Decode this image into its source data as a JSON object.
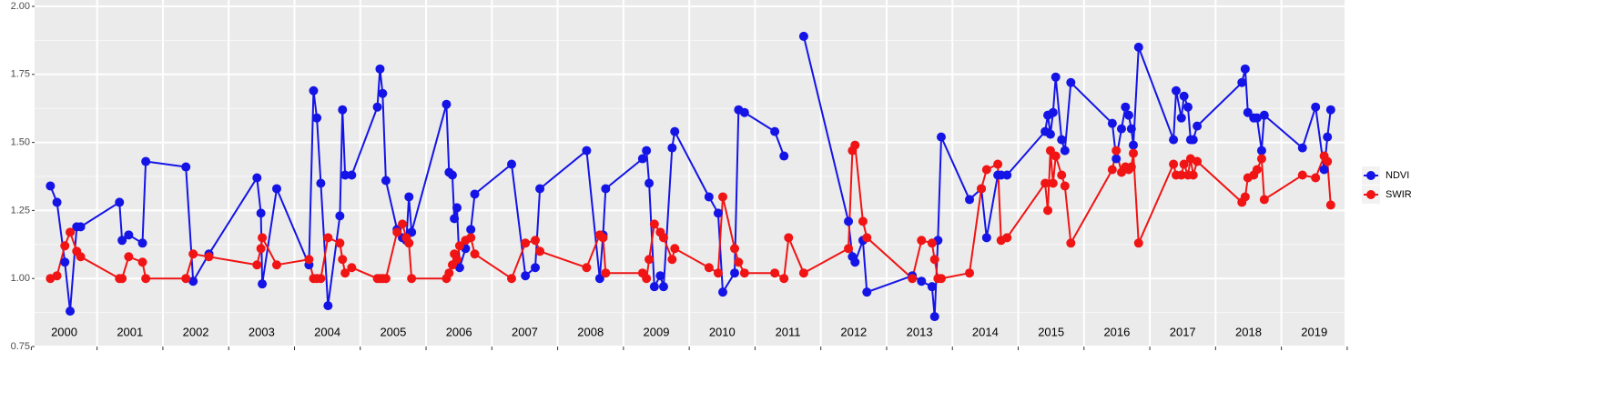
{
  "chart_data": {
    "type": "line",
    "x": [
      2000.29,
      2000.39,
      2000.51,
      2000.59,
      2000.69,
      2000.75,
      2001.34,
      2001.38,
      2001.48,
      2001.69,
      2001.74,
      2002.35,
      2002.46,
      2002.7,
      2003.43,
      2003.49,
      2003.51,
      2003.73,
      2004.22,
      2004.29,
      2004.34,
      2004.4,
      2004.51,
      2004.69,
      2004.73,
      2004.77,
      2004.87,
      2005.26,
      2005.3,
      2005.34,
      2005.39,
      2005.56,
      2005.64,
      2005.7,
      2005.74,
      2005.78,
      2006.31,
      2006.35,
      2006.4,
      2006.43,
      2006.47,
      2006.51,
      2006.6,
      2006.68,
      2006.74,
      2007.3,
      2007.51,
      2007.66,
      2007.73,
      2008.44,
      2008.64,
      2008.69,
      2008.73,
      2009.29,
      2009.35,
      2009.39,
      2009.47,
      2009.56,
      2009.61,
      2009.74,
      2009.78,
      2010.3,
      2010.44,
      2010.51,
      2010.69,
      2010.75,
      2010.84,
      2011.3,
      2011.44,
      2011.51,
      2011.74,
      2012.42,
      2012.48,
      2012.52,
      2012.64,
      2012.7,
      2013.39,
      2013.53,
      2013.69,
      2013.73,
      2013.78,
      2013.83,
      2014.26,
      2014.44,
      2014.52,
      2014.69,
      2014.74,
      2014.83,
      2015.41,
      2015.45,
      2015.49,
      2015.53,
      2015.57,
      2015.66,
      2015.71,
      2015.8,
      2016.43,
      2016.49,
      2016.57,
      2016.63,
      2016.68,
      2016.72,
      2016.75,
      2016.83,
      2017.36,
      2017.4,
      2017.48,
      2017.52,
      2017.58,
      2017.62,
      2017.66,
      2017.72,
      2018.4,
      2018.45,
      2018.49,
      2018.58,
      2018.63,
      2018.7,
      2018.74,
      2019.32,
      2019.52,
      2019.65,
      2019.7,
      2019.75
    ],
    "series": [
      {
        "name": "NDVI",
        "color": "#1414e6",
        "values": [
          1.34,
          1.28,
          1.06,
          0.88,
          1.19,
          1.19,
          1.28,
          1.14,
          1.16,
          1.13,
          1.43,
          1.41,
          0.99,
          1.09,
          1.37,
          1.24,
          0.98,
          1.33,
          1.05,
          1.69,
          1.59,
          1.35,
          0.9,
          1.23,
          1.62,
          1.38,
          1.38,
          1.63,
          1.77,
          1.68,
          1.36,
          1.18,
          1.15,
          1.14,
          1.3,
          1.17,
          1.64,
          1.39,
          1.38,
          1.22,
          1.26,
          1.04,
          1.11,
          1.18,
          1.31,
          1.42,
          1.01,
          1.04,
          1.33,
          1.47,
          1.0,
          1.16,
          1.33,
          1.44,
          1.47,
          1.35,
          0.97,
          1.01,
          0.97,
          1.48,
          1.54,
          1.3,
          1.24,
          0.95,
          1.02,
          1.62,
          1.61,
          1.54,
          1.45,
          null,
          1.89,
          1.21,
          1.08,
          1.06,
          1.14,
          0.95,
          1.01,
          0.99,
          0.97,
          0.86,
          1.14,
          1.52,
          1.29,
          1.33,
          1.15,
          1.38,
          1.38,
          1.38,
          1.54,
          1.6,
          1.53,
          1.61,
          1.74,
          1.51,
          1.47,
          1.72,
          1.57,
          1.44,
          1.55,
          1.63,
          1.6,
          1.55,
          1.49,
          1.85,
          1.51,
          1.69,
          1.59,
          1.67,
          1.63,
          1.51,
          1.51,
          1.56,
          1.72,
          1.77,
          1.61,
          1.59,
          1.59,
          1.47,
          1.6,
          1.48,
          1.63,
          1.4,
          1.52,
          1.62
        ]
      },
      {
        "name": "SWIR",
        "color": "#f01414",
        "values": [
          1.0,
          1.01,
          1.12,
          1.17,
          1.1,
          1.08,
          1.0,
          1.0,
          1.08,
          1.06,
          1.0,
          1.0,
          1.09,
          1.08,
          1.05,
          1.11,
          1.15,
          1.05,
          1.07,
          1.0,
          1.0,
          1.0,
          1.15,
          1.13,
          1.07,
          1.02,
          1.04,
          1.0,
          1.0,
          1.0,
          1.0,
          1.17,
          1.2,
          1.15,
          1.13,
          1.0,
          1.0,
          1.02,
          1.05,
          1.09,
          1.07,
          1.12,
          1.14,
          1.15,
          1.09,
          1.0,
          1.13,
          1.14,
          1.1,
          1.04,
          1.16,
          1.15,
          1.02,
          1.02,
          1.0,
          1.07,
          1.2,
          1.17,
          1.15,
          1.07,
          1.11,
          1.04,
          1.02,
          1.3,
          1.11,
          1.06,
          1.02,
          1.02,
          1.0,
          1.15,
          1.02,
          1.11,
          1.47,
          1.49,
          1.21,
          1.15,
          1.0,
          1.14,
          1.13,
          1.07,
          1.0,
          1.0,
          1.02,
          1.33,
          1.4,
          1.42,
          1.14,
          1.15,
          1.35,
          1.25,
          1.47,
          1.35,
          1.45,
          1.38,
          1.34,
          1.13,
          1.4,
          1.47,
          1.39,
          1.41,
          1.4,
          1.41,
          1.46,
          1.13,
          1.42,
          1.38,
          1.38,
          1.42,
          1.38,
          1.44,
          1.38,
          1.43,
          1.28,
          1.3,
          1.37,
          1.38,
          1.4,
          1.44,
          1.29,
          1.38,
          1.37,
          1.45,
          1.43,
          1.27
        ]
      }
    ],
    "xlim": [
      2000.05,
      2019.96
    ],
    "xticks": [
      {
        "value": 2000.5,
        "label": "2000"
      },
      {
        "value": 2001.5,
        "label": "2001"
      },
      {
        "value": 2002.5,
        "label": "2002"
      },
      {
        "value": 2003.5,
        "label": "2003"
      },
      {
        "value": 2004.5,
        "label": "2004"
      },
      {
        "value": 2005.5,
        "label": "2005"
      },
      {
        "value": 2006.5,
        "label": "2006"
      },
      {
        "value": 2007.5,
        "label": "2007"
      },
      {
        "value": 2008.5,
        "label": "2008"
      },
      {
        "value": 2009.5,
        "label": "2009"
      },
      {
        "value": 2010.5,
        "label": "2010"
      },
      {
        "value": 2011.5,
        "label": "2011"
      },
      {
        "value": 2012.5,
        "label": "2012"
      },
      {
        "value": 2013.5,
        "label": "2013"
      },
      {
        "value": 2014.5,
        "label": "2014"
      },
      {
        "value": 2015.5,
        "label": "2015"
      },
      {
        "value": 2016.5,
        "label": "2016"
      },
      {
        "value": 2017.5,
        "label": "2017"
      },
      {
        "value": 2018.5,
        "label": "2018"
      },
      {
        "value": 2019.5,
        "label": "2019"
      }
    ],
    "ylim": [
      0.75,
      2.0
    ],
    "yticks": [
      0.75,
      {
        "value": 1.0,
        "label": "1.00"
      },
      1.25,
      {
        "value": 1.5,
        "label": "1.50"
      },
      1.75,
      {
        "value": 2.0,
        "label": "2.00"
      }
    ],
    "grid": true,
    "legend": "right"
  }
}
